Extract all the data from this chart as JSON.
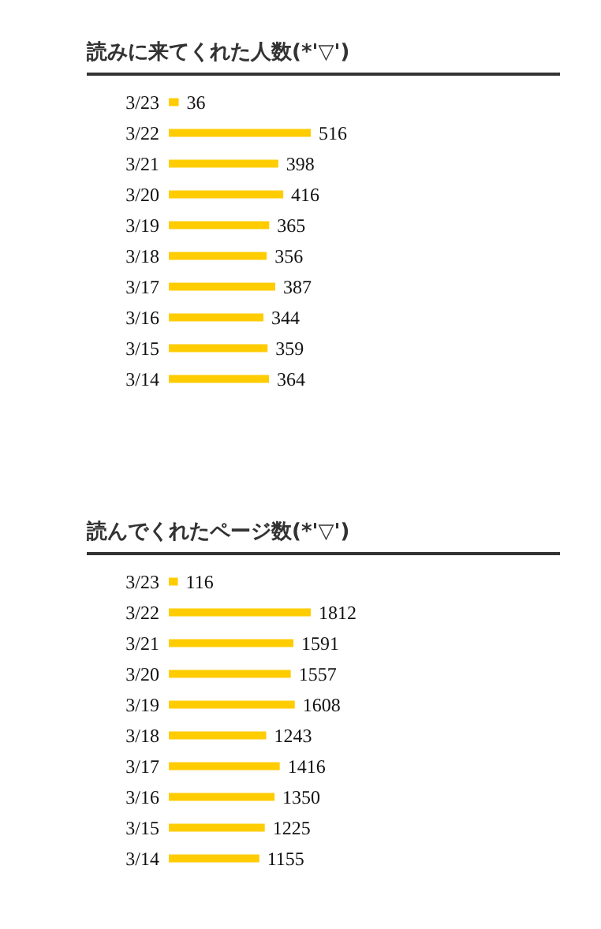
{
  "chart_data": [
    {
      "type": "bar",
      "orientation": "horizontal",
      "title": "読みに来てくれた人数(*'▽')",
      "categories": [
        "3/23",
        "3/22",
        "3/21",
        "3/20",
        "3/19",
        "3/18",
        "3/17",
        "3/16",
        "3/15",
        "3/14"
      ],
      "values": [
        36,
        516,
        398,
        416,
        365,
        356,
        387,
        344,
        359,
        364
      ],
      "color": "#ffcc00",
      "data_labels": true
    },
    {
      "type": "bar",
      "orientation": "horizontal",
      "title": "読んでくれたページ数(*'▽')",
      "categories": [
        "3/23",
        "3/22",
        "3/21",
        "3/20",
        "3/19",
        "3/18",
        "3/17",
        "3/16",
        "3/15",
        "3/14"
      ],
      "values": [
        116,
        1812,
        1591,
        1557,
        1608,
        1243,
        1416,
        1350,
        1225,
        1155
      ],
      "color": "#ffcc00",
      "data_labels": true
    }
  ]
}
